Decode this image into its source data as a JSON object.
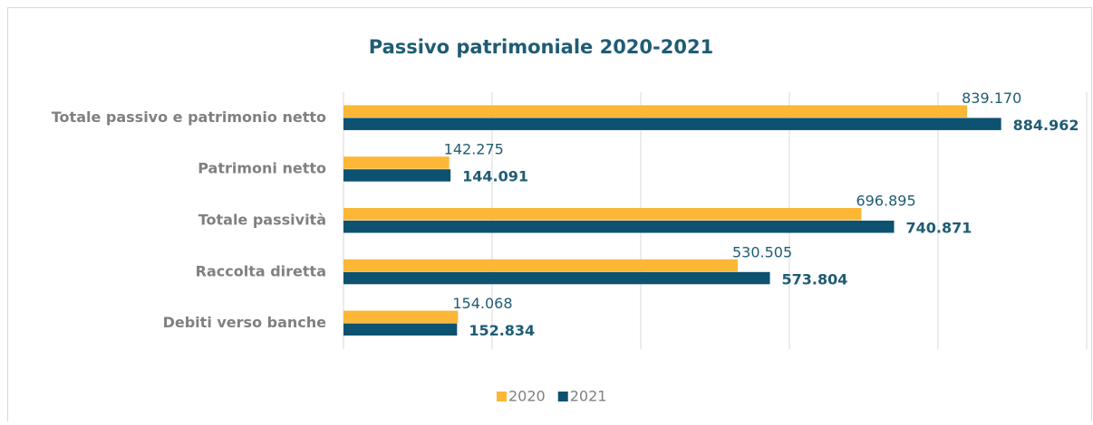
{
  "chart_data": {
    "type": "hbar",
    "title": "Passivo patrimoniale 2020-2021",
    "categories": [
      "Totale passivo e patrimonio netto",
      "Patrimoni netto",
      "Totale passività",
      "Raccolta diretta",
      "Debiti verso banche"
    ],
    "series": [
      {
        "name": "2020",
        "color": "#fbb735",
        "values": [
          839170,
          142275,
          696895,
          530505,
          154068
        ],
        "value_labels": [
          "839.170",
          "142.275",
          "696.895",
          "530.505",
          "154.068"
        ]
      },
      {
        "name": "2021",
        "color": "#0d5270",
        "values": [
          884962,
          144091,
          740871,
          573804,
          152834
        ],
        "value_labels": [
          "884.962",
          "144.091",
          "740.871",
          "573.804",
          "152.834"
        ]
      }
    ],
    "xlim": [
      0,
      1000000
    ],
    "xticks": [
      0,
      200000,
      400000,
      600000,
      800000,
      1000000
    ],
    "grid": true,
    "legend": "bottom"
  }
}
